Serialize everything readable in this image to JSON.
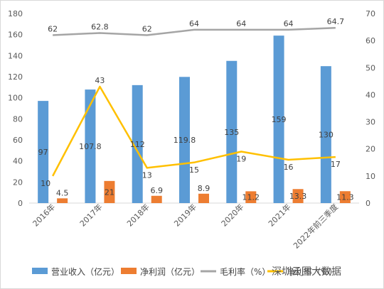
{
  "chart_data": {
    "type": "bar",
    "categories": [
      "2016年",
      "2017年",
      "2018年",
      "2019年",
      "2020年",
      "2021年",
      "2022年前三季度"
    ],
    "series": [
      {
        "name": "营业收入（亿元）",
        "type": "bar",
        "axis": "left",
        "color": "#5B9BD5",
        "values": [
          97,
          107.8,
          112,
          119.8,
          135,
          159,
          130
        ],
        "labels": [
          "97",
          "107.8",
          "112",
          "119.8",
          "135",
          "159",
          "130"
        ]
      },
      {
        "name": "净利润（亿元）",
        "type": "bar",
        "axis": "left",
        "color": "#ED7D31",
        "values": [
          4.5,
          21,
          6.9,
          8.9,
          11.2,
          13.3,
          11.3
        ],
        "labels": [
          "4.5",
          "21",
          "6.9",
          "8.9",
          "11.2",
          "13.3",
          "11.3"
        ]
      },
      {
        "name": "毛利率（%）",
        "type": "line",
        "axis": "right",
        "color": "#A5A5A5",
        "values": [
          62,
          62.8,
          62,
          64,
          64,
          64,
          64.7
        ],
        "labels": [
          "62",
          "62.8",
          "62",
          "64",
          "64",
          "64",
          "64.7"
        ]
      },
      {
        "name": "净利率（%）",
        "type": "line",
        "axis": "right",
        "color": "#FFC000",
        "values": [
          10,
          43,
          13,
          15,
          19,
          16,
          17
        ],
        "labels": [
          "10",
          "43",
          "13",
          "15",
          "19",
          "16",
          "17"
        ]
      }
    ],
    "y_left": {
      "min": 0,
      "max": 180,
      "step": 20,
      "ticks": [
        "0",
        "20",
        "40",
        "60",
        "80",
        "100",
        "120",
        "140",
        "160",
        "180"
      ]
    },
    "y_right": {
      "min": 0,
      "max": 70,
      "step": 10,
      "ticks": [
        "0",
        "10",
        "20",
        "30",
        "40",
        "50",
        "60",
        "70"
      ]
    },
    "grid": false,
    "legend_position": "bottom",
    "legend": [
      "营业收入（亿元）",
      "净利润（亿元）",
      "毛利率（%）",
      "净利率（%）"
    ]
  },
  "watermark": "深圳云图大数据"
}
